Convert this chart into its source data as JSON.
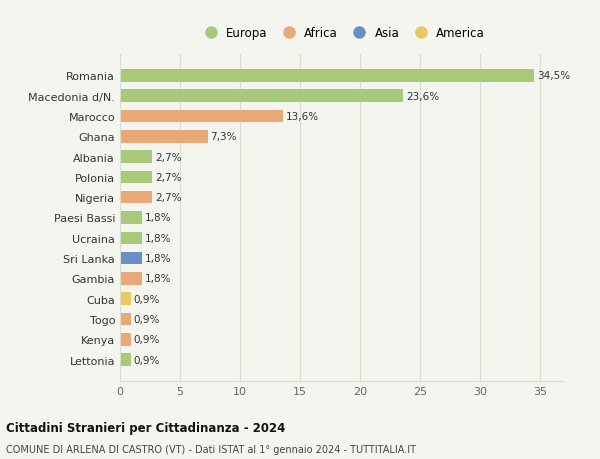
{
  "countries": [
    "Romania",
    "Macedonia d/N.",
    "Marocco",
    "Ghana",
    "Albania",
    "Polonia",
    "Nigeria",
    "Paesi Bassi",
    "Ucraina",
    "Sri Lanka",
    "Gambia",
    "Cuba",
    "Togo",
    "Kenya",
    "Lettonia"
  ],
  "values": [
    34.5,
    23.6,
    13.6,
    7.3,
    2.7,
    2.7,
    2.7,
    1.8,
    1.8,
    1.8,
    1.8,
    0.9,
    0.9,
    0.9,
    0.9
  ],
  "labels": [
    "34,5%",
    "23,6%",
    "13,6%",
    "7,3%",
    "2,7%",
    "2,7%",
    "2,7%",
    "1,8%",
    "1,8%",
    "1,8%",
    "1,8%",
    "0,9%",
    "0,9%",
    "0,9%",
    "0,9%"
  ],
  "colors": [
    "#a8c87a",
    "#a8c87a",
    "#e8a878",
    "#e8a878",
    "#a8c87a",
    "#a8c87a",
    "#e8a878",
    "#a8c87a",
    "#a8c87a",
    "#6a8fc8",
    "#e8a878",
    "#e8c860",
    "#e8a878",
    "#e8a878",
    "#a8c87a"
  ],
  "continent_colors": {
    "Europa": "#a8c87a",
    "Africa": "#e8a878",
    "Asia": "#6a8fc8",
    "America": "#e8c860"
  },
  "title1": "Cittadini Stranieri per Cittadinanza - 2024",
  "title2": "COMUNE DI ARLENA DI CASTRO (VT) - Dati ISTAT al 1° gennaio 2024 - TUTTITALIA.IT",
  "xlim": [
    0,
    37
  ],
  "xticks": [
    0,
    5,
    10,
    15,
    20,
    25,
    30,
    35
  ],
  "background_color": "#f5f5f0",
  "grid_color": "#ddddcc"
}
